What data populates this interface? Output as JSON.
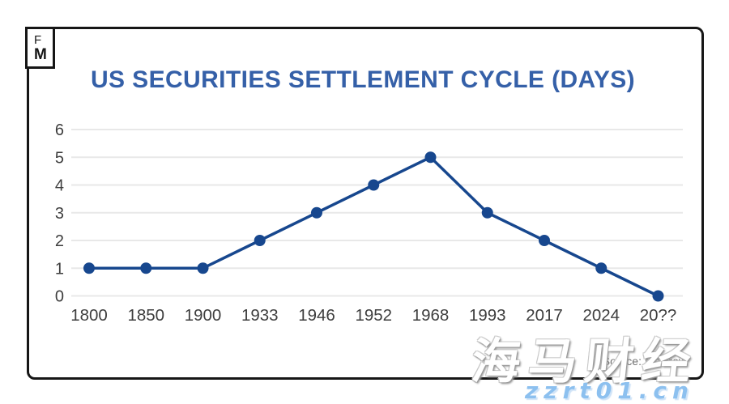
{
  "page": {
    "background": "#ffffff"
  },
  "logo": {
    "line1": "F",
    "line2": "M"
  },
  "title": {
    "text": "US SECURITIES SETTLEMENT CYCLE (DAYS)",
    "color": "#3560a8"
  },
  "source": {
    "label": "Source: Mesirow"
  },
  "watermarks": {
    "cjk": "海马财经",
    "url": "zzrt01.cn"
  },
  "chart_data": {
    "type": "line",
    "title": "US SECURITIES SETTLEMENT CYCLE (DAYS)",
    "categories": [
      "1800",
      "1850",
      "1900",
      "1933",
      "1946",
      "1952",
      "1968",
      "1993",
      "2017",
      "2024",
      "20??"
    ],
    "values": [
      1,
      1,
      1,
      2,
      3,
      4,
      5,
      3,
      2,
      1,
      0
    ],
    "xlabel": "",
    "ylabel": "",
    "ylim": [
      0,
      6
    ],
    "yticks": [
      0,
      1,
      2,
      3,
      4,
      5,
      6
    ],
    "grid": "horizontal",
    "legend": "none",
    "line_color": "#17478e",
    "marker_color": "#17478e",
    "gridline_color": "#e8e8e8",
    "tick_color": "#3e3e3e"
  }
}
